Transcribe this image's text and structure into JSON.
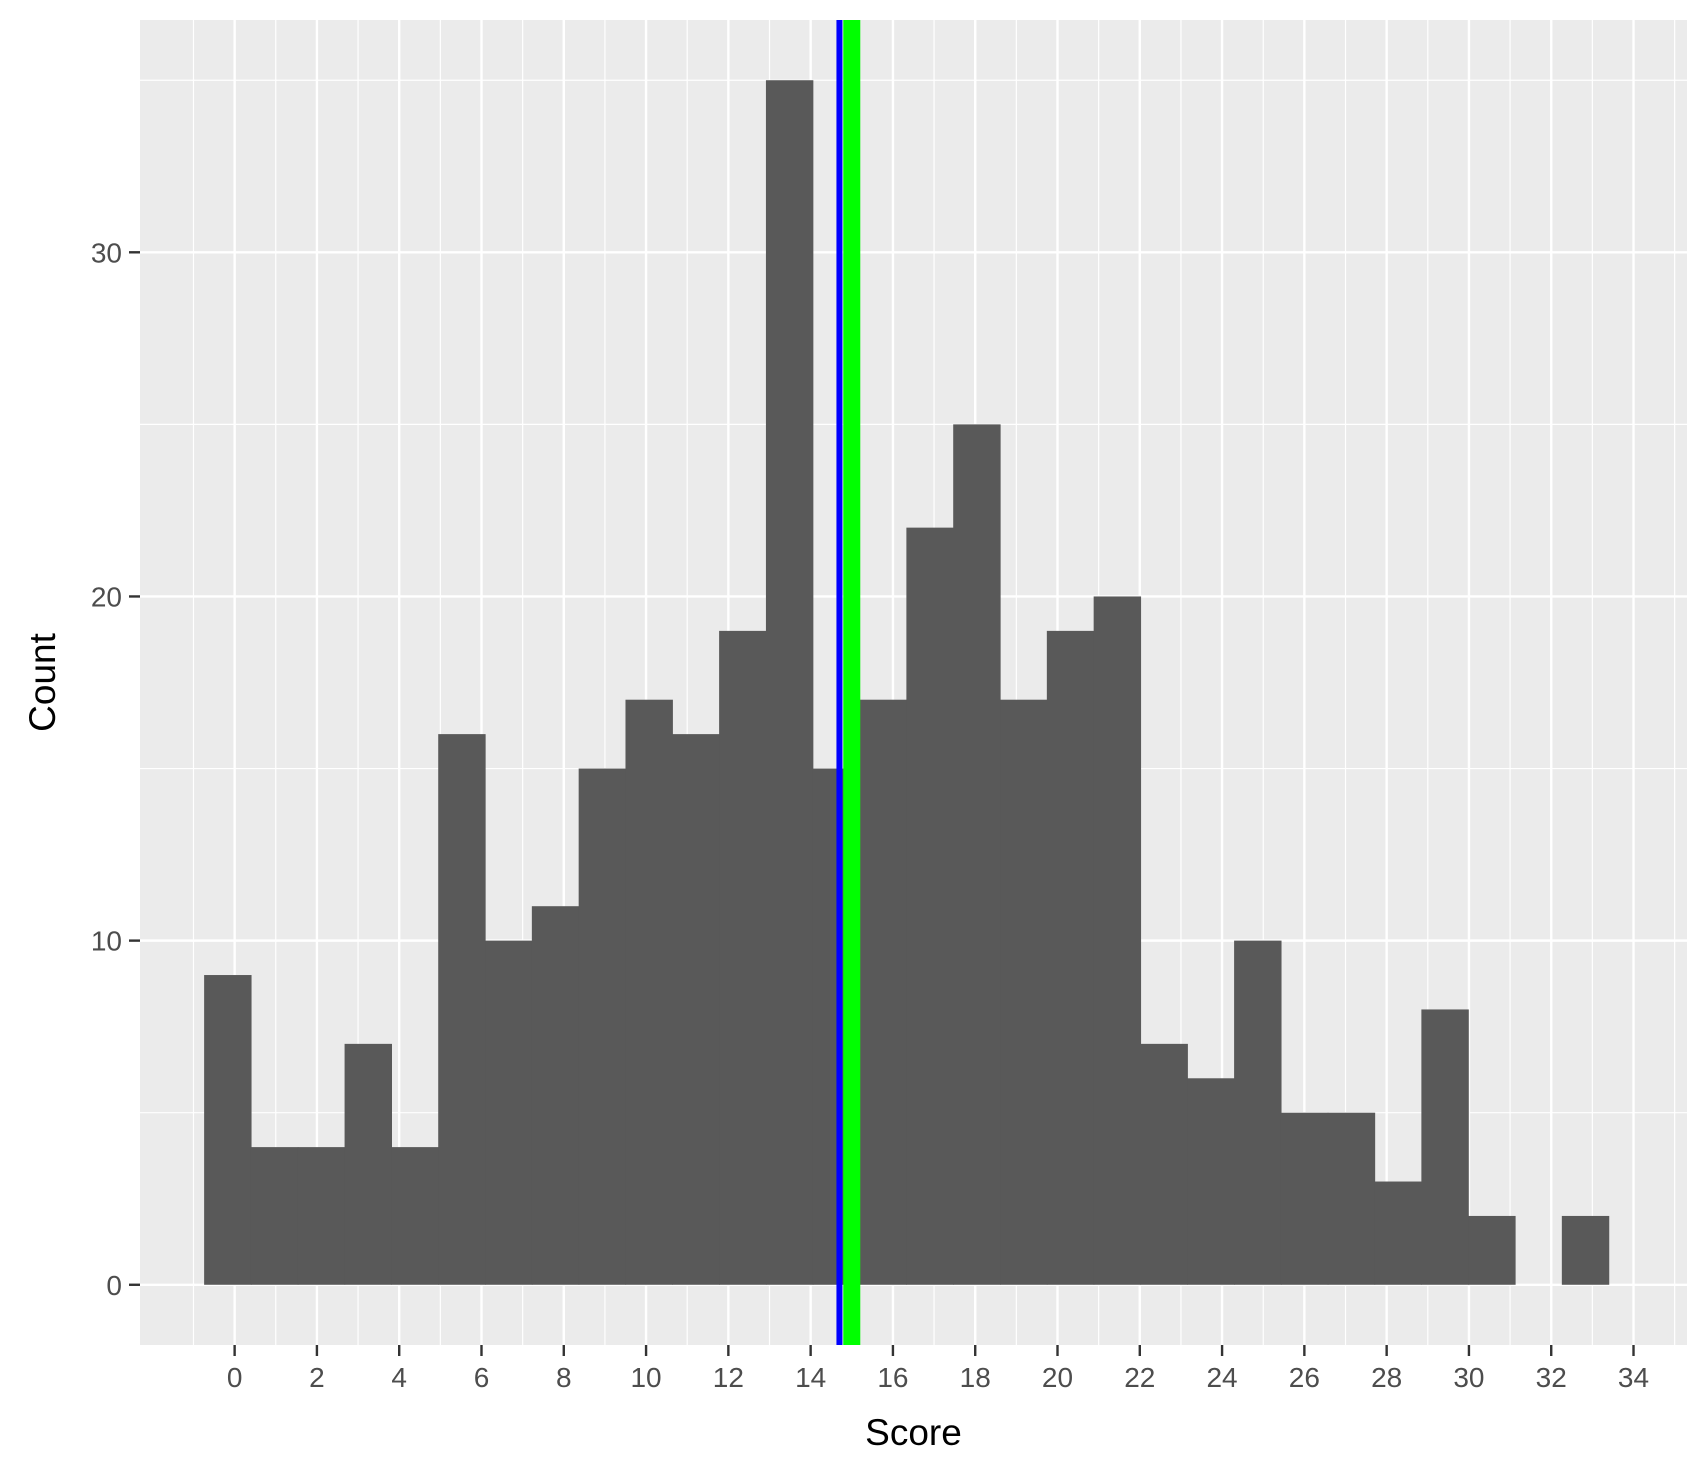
{
  "chart_data": {
    "type": "bar",
    "xlabel": "Score",
    "ylabel": "Count",
    "xlim": [
      -2.3,
      35.3
    ],
    "ylim": [
      -1.75,
      36.75
    ],
    "x_ticks": [
      0,
      2,
      4,
      6,
      8,
      10,
      12,
      14,
      16,
      18,
      20,
      22,
      24,
      26,
      28,
      30,
      32,
      34
    ],
    "y_ticks": [
      0,
      10,
      20,
      30
    ],
    "grid": true,
    "bin_width": 1.1379,
    "bin_start": -0.7414,
    "bins": [
      {
        "x": 0,
        "count": 9
      },
      {
        "x": 1,
        "count": 4
      },
      {
        "x": 2,
        "count": 4
      },
      {
        "x": 3,
        "count": 7
      },
      {
        "x": 4,
        "count": 4
      },
      {
        "x": 5,
        "count": 16
      },
      {
        "x": 6,
        "count": 10
      },
      {
        "x": 7,
        "count": 11
      },
      {
        "x": 8,
        "count": 15
      },
      {
        "x": 9,
        "count": 17
      },
      {
        "x": 10,
        "count": 16
      },
      {
        "x": 11,
        "count": 19
      },
      {
        "x": 12,
        "count": 35
      },
      {
        "x": 13,
        "count": 15
      },
      {
        "x": 14,
        "count": 17
      },
      {
        "x": 15,
        "count": 22
      },
      {
        "x": 16,
        "count": 25
      },
      {
        "x": 17,
        "count": 17
      },
      {
        "x": 18,
        "count": 19
      },
      {
        "x": 19,
        "count": 20
      },
      {
        "x": 20,
        "count": 7
      },
      {
        "x": 21,
        "count": 6
      },
      {
        "x": 22,
        "count": 10
      },
      {
        "x": 23,
        "count": 5
      },
      {
        "x": 24,
        "count": 5
      },
      {
        "x": 25,
        "count": 3
      },
      {
        "x": 26,
        "count": 8
      },
      {
        "x": 27,
        "count": 2
      },
      {
        "x": 28,
        "count": 0
      },
      {
        "x": 29,
        "count": 2
      }
    ],
    "reference_lines": [
      {
        "x": 14.7,
        "color": "#0000ff"
      },
      {
        "x": 15.0,
        "color": "#00ff00"
      }
    ],
    "colors": {
      "bar": "#595959",
      "panel": "#ebebeb",
      "grid": "#ffffff"
    }
  }
}
